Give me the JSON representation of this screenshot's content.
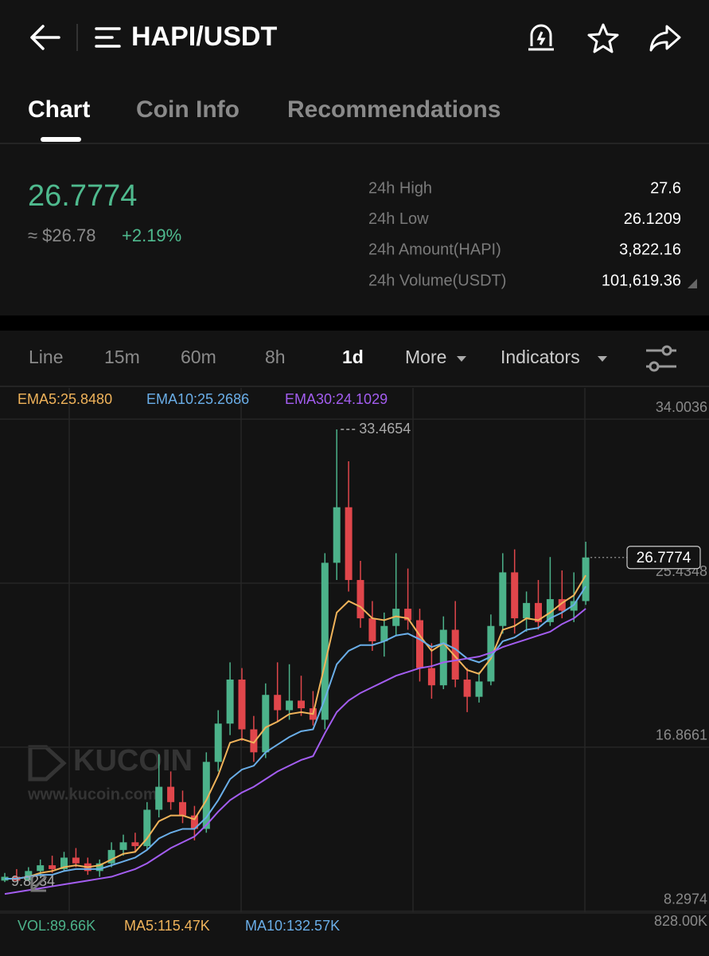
{
  "header": {
    "pair": "HAPI/USDT"
  },
  "tabs": [
    "Chart",
    "Coin Info",
    "Recommendations"
  ],
  "price": {
    "last": "26.7774",
    "fiat": "≈ $26.78",
    "change": "+2.19%"
  },
  "stats": [
    {
      "label": "24h High",
      "value": "27.6"
    },
    {
      "label": "24h Low",
      "value": "26.1209"
    },
    {
      "label": "24h Amount(HAPI)",
      "value": "3,822.16"
    },
    {
      "label": "24h Volume(USDT)",
      "value": "101,619.36"
    }
  ],
  "intervals": [
    "Line",
    "15m",
    "60m",
    "8h",
    "1d",
    "More",
    "Indicators"
  ],
  "watermark": {
    "brand": "KUCOIN",
    "url": "www.kucoin.com"
  },
  "chart_data": {
    "type": "candlestick",
    "ohlc": [
      [
        9.9,
        10.3,
        9.8234,
        10.1
      ],
      [
        10.1,
        10.5,
        9.9,
        9.9
      ],
      [
        9.9,
        10.6,
        9.9,
        10.4
      ],
      [
        10.4,
        11.0,
        10.1,
        10.7
      ],
      [
        10.7,
        11.2,
        10.3,
        10.5
      ],
      [
        10.5,
        11.4,
        10.4,
        11.1
      ],
      [
        11.1,
        11.6,
        10.6,
        10.8
      ],
      [
        10.8,
        11.1,
        10.2,
        10.4
      ],
      [
        10.4,
        11.0,
        10.1,
        10.8
      ],
      [
        10.8,
        11.9,
        10.6,
        11.5
      ],
      [
        11.5,
        12.3,
        11.2,
        11.9
      ],
      [
        11.9,
        12.4,
        11.4,
        11.7
      ],
      [
        11.7,
        14.0,
        11.5,
        13.6
      ],
      [
        13.6,
        16.5,
        13.2,
        14.8
      ],
      [
        14.8,
        15.6,
        13.6,
        14.0
      ],
      [
        14.0,
        14.6,
        12.9,
        13.3
      ],
      [
        13.3,
        13.8,
        12.0,
        12.6
      ],
      [
        12.6,
        16.6,
        12.4,
        16.1
      ],
      [
        16.1,
        18.8,
        15.6,
        18.1
      ],
      [
        18.1,
        21.3,
        17.5,
        20.4
      ],
      [
        20.4,
        21.0,
        17.2,
        17.8
      ],
      [
        17.8,
        18.5,
        16.1,
        16.6
      ],
      [
        16.6,
        20.2,
        16.3,
        19.6
      ],
      [
        19.6,
        21.3,
        18.2,
        18.8
      ],
      [
        18.8,
        21.2,
        18.3,
        19.3
      ],
      [
        19.3,
        20.6,
        18.5,
        18.9
      ],
      [
        18.9,
        19.8,
        18.0,
        18.3
      ],
      [
        18.3,
        27.0,
        17.8,
        26.5
      ],
      [
        26.5,
        33.4654,
        25.6,
        29.4
      ],
      [
        29.4,
        31.8,
        25.0,
        25.6
      ],
      [
        25.6,
        26.6,
        23.1,
        23.6
      ],
      [
        23.6,
        24.5,
        21.9,
        22.4
      ],
      [
        22.4,
        23.9,
        21.6,
        23.2
      ],
      [
        23.2,
        27.0,
        22.7,
        24.1
      ],
      [
        24.1,
        26.2,
        23.0,
        23.5
      ],
      [
        23.5,
        24.1,
        20.3,
        21.0
      ],
      [
        21.0,
        22.3,
        19.4,
        20.1
      ],
      [
        20.1,
        23.7,
        19.9,
        23.0
      ],
      [
        23.0,
        24.5,
        20.0,
        20.4
      ],
      [
        20.4,
        21.0,
        18.7,
        19.5
      ],
      [
        19.5,
        20.8,
        19.2,
        20.3
      ],
      [
        20.3,
        23.8,
        20.1,
        23.2
      ],
      [
        23.2,
        27.0,
        22.8,
        26.0
      ],
      [
        26.0,
        27.2,
        22.8,
        23.6
      ],
      [
        23.6,
        25.0,
        22.9,
        24.4
      ],
      [
        24.4,
        25.6,
        23.0,
        23.4
      ],
      [
        23.4,
        26.8,
        23.2,
        24.6
      ],
      [
        24.6,
        26.1,
        23.6,
        24.0
      ],
      [
        24.0,
        26.0,
        23.4,
        24.5
      ],
      [
        24.5,
        27.6,
        24.3,
        26.7774
      ]
    ],
    "up_color": "#4cb28a",
    "down_color": "#e0464b",
    "series": [
      {
        "name": "EMA5:25.8480",
        "color": "#f0b35a",
        "values": [
          10.0,
          10.0,
          10.1,
          10.3,
          10.4,
          10.6,
          10.7,
          10.6,
          10.7,
          11.0,
          11.3,
          11.4,
          12.1,
          13.0,
          13.3,
          13.3,
          13.1,
          14.1,
          15.4,
          17.1,
          17.3,
          17.1,
          17.9,
          18.2,
          18.6,
          18.7,
          18.6,
          21.2,
          23.9,
          24.5,
          24.2,
          23.6,
          23.5,
          23.7,
          23.6,
          22.7,
          21.9,
          22.3,
          21.6,
          20.9,
          20.7,
          21.5,
          23.0,
          23.2,
          23.6,
          23.5,
          23.9,
          24.4,
          24.8,
          25.848
        ]
      },
      {
        "name": "EMA10:25.2686",
        "color": "#6aaee8",
        "values": [
          10.0,
          10.0,
          10.1,
          10.2,
          10.2,
          10.4,
          10.5,
          10.5,
          10.5,
          10.7,
          10.9,
          11.1,
          11.5,
          12.1,
          12.4,
          12.6,
          12.6,
          13.2,
          14.1,
          15.2,
          15.7,
          15.9,
          16.6,
          17.0,
          17.4,
          17.7,
          17.8,
          19.4,
          21.2,
          21.9,
          22.2,
          22.2,
          22.4,
          22.7,
          22.8,
          22.5,
          22.1,
          22.3,
          22.0,
          21.5,
          21.3,
          21.6,
          22.4,
          22.6,
          23.0,
          23.1,
          23.6,
          23.9,
          24.3,
          25.2686
        ]
      },
      {
        "name": "EMA30:24.1029",
        "color": "#a35df0",
        "values": [
          9.2,
          9.3,
          9.4,
          9.5,
          9.6,
          9.7,
          9.8,
          9.9,
          10.0,
          10.1,
          10.3,
          10.5,
          10.8,
          11.2,
          11.6,
          11.9,
          12.2,
          12.8,
          13.5,
          14.1,
          14.5,
          14.8,
          15.2,
          15.6,
          15.9,
          16.2,
          16.4,
          17.6,
          18.7,
          19.3,
          19.7,
          20.0,
          20.3,
          20.6,
          20.8,
          21.0,
          21.1,
          21.3,
          21.4,
          21.5,
          21.6,
          21.8,
          22.1,
          22.3,
          22.5,
          22.7,
          22.9,
          23.3,
          23.6,
          24.1029
        ]
      }
    ],
    "ylim": [
      8.25,
      35.63
    ],
    "yticks": [
      8.2974,
      16.8661,
      25.4348,
      34.0036
    ],
    "grid": true,
    "max_label": 33.4654,
    "min_label": 9.8234,
    "last_price": 26.7774
  },
  "volume": {
    "legend": [
      {
        "text": "VOL:89.66K",
        "color": "#4cb28a"
      },
      {
        "text": "MA5:115.47K",
        "color": "#f0b35a"
      },
      {
        "text": "MA10:132.57K",
        "color": "#6aaee8"
      }
    ],
    "axis_label": "828.00K"
  }
}
